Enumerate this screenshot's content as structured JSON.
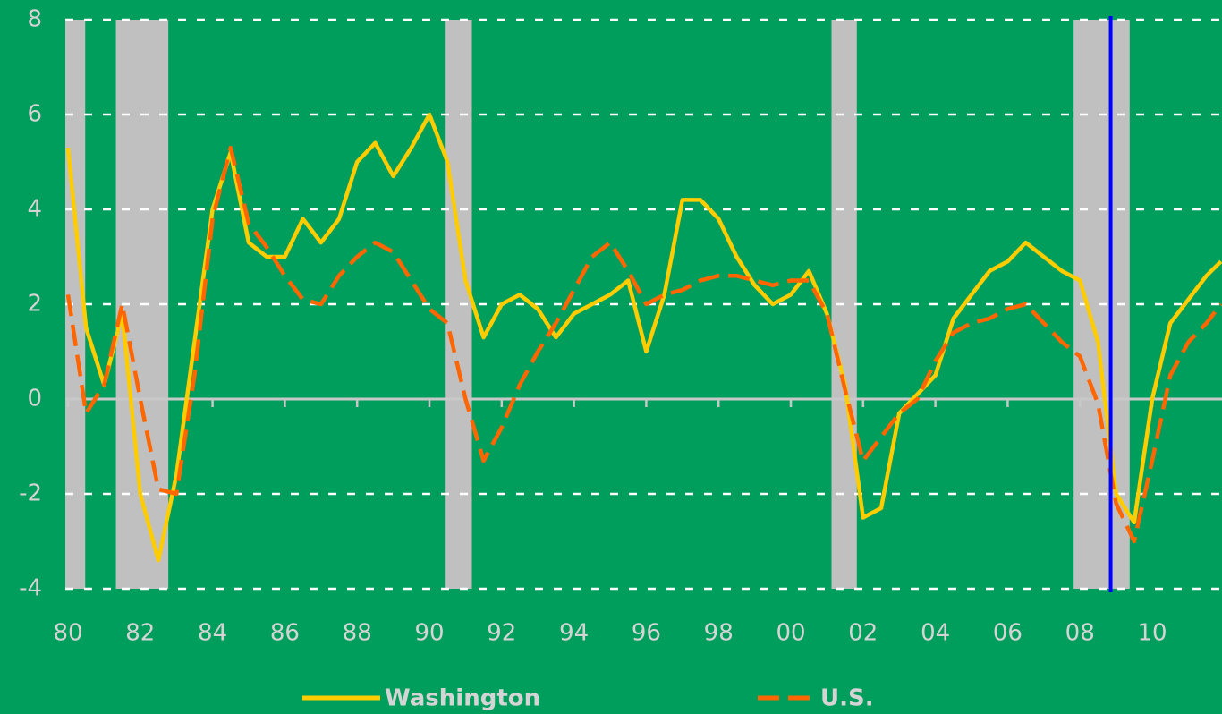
{
  "chart_data": {
    "type": "line",
    "x": [
      1980,
      1980.5,
      1981,
      1981.5,
      1982,
      1982.5,
      1983,
      1983.5,
      1984,
      1984.5,
      1985,
      1985.5,
      1986,
      1986.5,
      1987,
      1987.5,
      1988,
      1988.5,
      1989,
      1989.5,
      1990,
      1990.5,
      1991,
      1991.5,
      1992,
      1992.5,
      1993,
      1993.5,
      1994,
      1994.5,
      1995,
      1995.5,
      1996,
      1996.5,
      1997,
      1997.5,
      1998,
      1998.5,
      1999,
      1999.5,
      2000,
      2000.5,
      2001,
      2001.5,
      2002,
      2002.5,
      2003,
      2003.5,
      2004,
      2004.5,
      2005,
      2005.5,
      2006,
      2006.5,
      2007,
      2007.5,
      2008,
      2008.5,
      2009,
      2009.5,
      2010,
      2010.5,
      2011,
      2011.5,
      2011.9
    ],
    "series": [
      {
        "name": "Washington",
        "color": "#ffcc00",
        "dashed": false,
        "values": [
          5.3,
          1.5,
          0.3,
          1.8,
          -2.0,
          -3.4,
          -1.6,
          1.2,
          4.0,
          5.2,
          3.3,
          3.0,
          3.0,
          3.8,
          3.3,
          3.8,
          5.0,
          5.4,
          4.7,
          5.3,
          6.0,
          5.0,
          2.5,
          1.3,
          2.0,
          2.2,
          1.9,
          1.3,
          1.8,
          2.0,
          2.2,
          2.5,
          1.0,
          2.2,
          4.2,
          4.2,
          3.8,
          3.0,
          2.4,
          2.0,
          2.2,
          2.7,
          1.8,
          0.3,
          -2.5,
          -2.3,
          -0.3,
          0.1,
          0.5,
          1.7,
          2.2,
          2.7,
          2.9,
          3.3,
          3.0,
          2.7,
          2.5,
          1.2,
          -2.0,
          -2.6,
          0.0,
          1.6,
          2.1,
          2.6,
          2.9
        ]
      },
      {
        "name": "U.S.",
        "color": "#ff6600",
        "dashed": true,
        "values": [
          2.2,
          -0.3,
          0.3,
          2.0,
          0.0,
          -1.9,
          -2.0,
          0.5,
          3.8,
          5.3,
          3.7,
          3.2,
          2.6,
          2.1,
          2.0,
          2.6,
          3.0,
          3.3,
          3.1,
          2.5,
          1.9,
          1.6,
          0.0,
          -1.3,
          -0.6,
          0.3,
          1.0,
          1.6,
          2.3,
          3.0,
          3.3,
          2.7,
          2.0,
          2.2,
          2.3,
          2.5,
          2.6,
          2.6,
          2.5,
          2.4,
          2.5,
          2.5,
          1.8,
          0.2,
          -1.3,
          -0.8,
          -0.3,
          0.0,
          0.8,
          1.4,
          1.6,
          1.7,
          1.9,
          2.0,
          1.6,
          1.2,
          0.9,
          -0.1,
          -2.2,
          -3.0,
          -1.3,
          0.5,
          1.2,
          1.6,
          2.0
        ]
      }
    ],
    "recessions": [
      [
        1980.0,
        1980.55
      ],
      [
        1981.4,
        1982.85
      ],
      [
        1990.5,
        1991.25
      ],
      [
        2001.2,
        2001.9
      ],
      [
        2007.9,
        2009.45
      ]
    ],
    "vline": 2008.85,
    "xlim": [
      1980,
      2011.93
    ],
    "xticks": [
      {
        "value": 1980,
        "label": "80"
      },
      {
        "value": 1982,
        "label": "82"
      },
      {
        "value": 1984,
        "label": "84"
      },
      {
        "value": 1986,
        "label": "86"
      },
      {
        "value": 1988,
        "label": "88"
      },
      {
        "value": 1990,
        "label": "90"
      },
      {
        "value": 1992,
        "label": "92"
      },
      {
        "value": 1994,
        "label": "94"
      },
      {
        "value": 1996,
        "label": "96"
      },
      {
        "value": 1998,
        "label": "98"
      },
      {
        "value": 2000,
        "label": "00"
      },
      {
        "value": 2002,
        "label": "02"
      },
      {
        "value": 2004,
        "label": "04"
      },
      {
        "value": 2006,
        "label": "06"
      },
      {
        "value": 2008,
        "label": "08"
      },
      {
        "value": 2010,
        "label": "10"
      }
    ],
    "ylim": [
      -4,
      8
    ],
    "yticks": [
      -4,
      -2,
      0,
      2,
      4,
      6,
      8
    ],
    "grid": true
  }
}
